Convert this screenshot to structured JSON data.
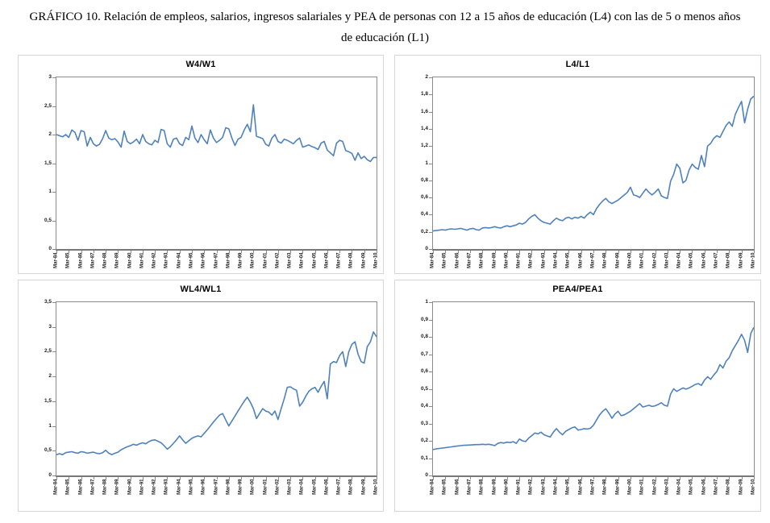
{
  "page": {
    "title_line1": "GRÁFICO 10. Relación de empleos, salarios, ingresos salariales y PEA de personas con 12 a 15 años de educación (L4) con las de 5 o menos años",
    "title_line2": "de educación (L1)"
  },
  "style": {
    "line_color": "#4F81BD",
    "axis_color": "#8a8a8a"
  },
  "chart_data": [
    {
      "type": "line",
      "title": "W4/W1",
      "ylim": [
        0,
        3
      ],
      "ystep": 0.5,
      "grid": false,
      "legend": false,
      "x_labels": [
        "Mar-84",
        "Mar-85",
        "Mar-86",
        "Mar-87",
        "Mar-88",
        "Mar-89",
        "Mar-90",
        "Mar-91",
        "Mar-92",
        "Mar-93",
        "Mar-94",
        "Mar-95",
        "Mar-96",
        "Mar-97",
        "Mar-98",
        "Mar-99",
        "Mar-00",
        "Mar-01",
        "Mar-02",
        "Mar-03",
        "Mar-04",
        "Mar-05",
        "Mar-06",
        "Mar-07",
        "Mar-08",
        "Mar-09",
        "Mar-10"
      ],
      "values": [
        2.0,
        1.98,
        1.96,
        2.0,
        1.95,
        2.08,
        2.04,
        1.9,
        2.07,
        2.05,
        1.8,
        1.95,
        1.84,
        1.8,
        1.83,
        1.93,
        2.07,
        1.94,
        1.91,
        1.93,
        1.87,
        1.78,
        2.06,
        1.88,
        1.84,
        1.87,
        1.92,
        1.84,
        2.0,
        1.88,
        1.84,
        1.82,
        1.9,
        1.86,
        2.09,
        2.07,
        1.84,
        1.78,
        1.92,
        1.94,
        1.84,
        1.81,
        1.95,
        1.91,
        2.15,
        1.94,
        1.86,
        2.0,
        1.91,
        1.84,
        2.08,
        1.94,
        1.86,
        1.9,
        1.95,
        2.12,
        2.1,
        1.94,
        1.81,
        1.92,
        1.95,
        2.08,
        2.18,
        2.05,
        2.52,
        1.97,
        1.95,
        1.93,
        1.83,
        1.8,
        1.94,
        2.0,
        1.88,
        1.85,
        1.92,
        1.9,
        1.87,
        1.84,
        1.9,
        1.94,
        1.78,
        1.8,
        1.82,
        1.79,
        1.77,
        1.74,
        1.85,
        1.88,
        1.73,
        1.68,
        1.63,
        1.85,
        1.9,
        1.88,
        1.72,
        1.7,
        1.67,
        1.55,
        1.68,
        1.58,
        1.62,
        1.56,
        1.53,
        1.6,
        1.6
      ]
    },
    {
      "type": "line",
      "title": "L4/L1",
      "ylim": [
        0,
        2
      ],
      "ystep": 0.2,
      "grid": false,
      "legend": false,
      "x_labels": [
        "Mar-84",
        "Mar-85",
        "Mar-86",
        "Mar-87",
        "Mar-88",
        "Mar-89",
        "Mar-90",
        "Mar-91",
        "Mar-92",
        "Mar-93",
        "Mar-94",
        "Mar-95",
        "Mar-96",
        "Mar-97",
        "Mar-98",
        "Mar-99",
        "Mar-00",
        "Mar-01",
        "Mar-02",
        "Mar-03",
        "Mar-04",
        "Mar-05",
        "Mar-06",
        "Mar-07",
        "Mar-08",
        "Mar-09",
        "Mar-10"
      ],
      "values": [
        0.21,
        0.215,
        0.22,
        0.225,
        0.22,
        0.23,
        0.235,
        0.23,
        0.235,
        0.24,
        0.23,
        0.22,
        0.235,
        0.24,
        0.225,
        0.22,
        0.245,
        0.25,
        0.245,
        0.25,
        0.26,
        0.25,
        0.245,
        0.26,
        0.27,
        0.26,
        0.27,
        0.28,
        0.3,
        0.29,
        0.31,
        0.35,
        0.38,
        0.4,
        0.36,
        0.33,
        0.31,
        0.3,
        0.29,
        0.33,
        0.36,
        0.34,
        0.33,
        0.36,
        0.37,
        0.35,
        0.37,
        0.36,
        0.38,
        0.36,
        0.4,
        0.43,
        0.4,
        0.47,
        0.52,
        0.56,
        0.59,
        0.55,
        0.53,
        0.55,
        0.57,
        0.6,
        0.63,
        0.66,
        0.72,
        0.63,
        0.62,
        0.6,
        0.65,
        0.7,
        0.66,
        0.63,
        0.66,
        0.7,
        0.62,
        0.6,
        0.59,
        0.79,
        0.87,
        0.99,
        0.94,
        0.77,
        0.8,
        0.92,
        0.99,
        0.95,
        0.93,
        1.09,
        0.96,
        1.2,
        1.23,
        1.29,
        1.32,
        1.3,
        1.37,
        1.44,
        1.48,
        1.43,
        1.57,
        1.65,
        1.72,
        1.47,
        1.63,
        1.75,
        1.78
      ]
    },
    {
      "type": "line",
      "title": "WL4/WL1",
      "ylim": [
        0,
        3.5
      ],
      "ystep": 0.5,
      "grid": false,
      "legend": false,
      "x_labels": [
        "Mar-84",
        "Mar-85",
        "Mar-86",
        "Mar-87",
        "Mar-88",
        "Mar-89",
        "Mar-90",
        "Mar-91",
        "Mar-92",
        "Mar-93",
        "Mar-94",
        "Mar-95",
        "Mar-96",
        "Mar-97",
        "Mar-98",
        "Mar-99",
        "Mar-00",
        "Mar-01",
        "Mar-02",
        "Mar-03",
        "Mar-04",
        "Mar-05",
        "Mar-06",
        "Mar-07",
        "Mar-08",
        "Mar-09",
        "Mar-10"
      ],
      "values": [
        0.42,
        0.44,
        0.42,
        0.46,
        0.47,
        0.48,
        0.46,
        0.45,
        0.48,
        0.47,
        0.45,
        0.46,
        0.47,
        0.45,
        0.44,
        0.46,
        0.51,
        0.45,
        0.42,
        0.45,
        0.47,
        0.52,
        0.55,
        0.58,
        0.6,
        0.63,
        0.61,
        0.64,
        0.66,
        0.64,
        0.68,
        0.71,
        0.72,
        0.69,
        0.66,
        0.6,
        0.53,
        0.58,
        0.65,
        0.72,
        0.8,
        0.72,
        0.65,
        0.7,
        0.75,
        0.78,
        0.8,
        0.78,
        0.85,
        0.92,
        1.0,
        1.08,
        1.15,
        1.22,
        1.25,
        1.12,
        1.0,
        1.1,
        1.2,
        1.3,
        1.4,
        1.5,
        1.58,
        1.48,
        1.35,
        1.15,
        1.25,
        1.35,
        1.3,
        1.28,
        1.22,
        1.3,
        1.13,
        1.35,
        1.55,
        1.78,
        1.79,
        1.75,
        1.72,
        1.4,
        1.48,
        1.6,
        1.7,
        1.75,
        1.78,
        1.68,
        1.8,
        1.9,
        1.55,
        2.25,
        2.3,
        2.28,
        2.42,
        2.5,
        2.2,
        2.5,
        2.65,
        2.7,
        2.45,
        2.3,
        2.27,
        2.6,
        2.7,
        2.9,
        2.8
      ]
    },
    {
      "type": "line",
      "title": "PEA4/PEA1",
      "ylim": [
        0,
        1
      ],
      "ystep": 0.1,
      "grid": false,
      "legend": false,
      "x_labels": [
        "Mar-84",
        "Mar-85",
        "Mar-86",
        "Mar-87",
        "Mar-88",
        "Mar-89",
        "Mar-90",
        "Mar-91",
        "Mar-92",
        "Mar-93",
        "Mar-94",
        "Mar-95",
        "Mar-96",
        "Mar-97",
        "Mar-98",
        "Mar-99",
        "Mar-00",
        "Mar-01",
        "Mar-02",
        "Mar-03",
        "Mar-04",
        "Mar-05",
        "Mar-06",
        "Mar-07",
        "Mar-08",
        "Mar-09",
        "Mar-10"
      ],
      "values": [
        0.15,
        0.153,
        0.156,
        0.158,
        0.16,
        0.163,
        0.165,
        0.168,
        0.17,
        0.172,
        0.174,
        0.175,
        0.176,
        0.177,
        0.178,
        0.178,
        0.18,
        0.178,
        0.18,
        0.177,
        0.172,
        0.185,
        0.19,
        0.187,
        0.192,
        0.19,
        0.195,
        0.185,
        0.21,
        0.2,
        0.196,
        0.215,
        0.23,
        0.245,
        0.24,
        0.25,
        0.235,
        0.228,
        0.222,
        0.25,
        0.27,
        0.25,
        0.235,
        0.255,
        0.265,
        0.275,
        0.28,
        0.262,
        0.265,
        0.27,
        0.268,
        0.272,
        0.29,
        0.32,
        0.35,
        0.37,
        0.385,
        0.36,
        0.33,
        0.355,
        0.37,
        0.345,
        0.35,
        0.36,
        0.37,
        0.385,
        0.4,
        0.415,
        0.395,
        0.4,
        0.405,
        0.398,
        0.402,
        0.41,
        0.42,
        0.405,
        0.4,
        0.47,
        0.5,
        0.485,
        0.495,
        0.505,
        0.498,
        0.505,
        0.515,
        0.525,
        0.53,
        0.52,
        0.55,
        0.57,
        0.555,
        0.58,
        0.6,
        0.64,
        0.62,
        0.66,
        0.68,
        0.72,
        0.75,
        0.78,
        0.815,
        0.78,
        0.71,
        0.82,
        0.855
      ]
    }
  ]
}
